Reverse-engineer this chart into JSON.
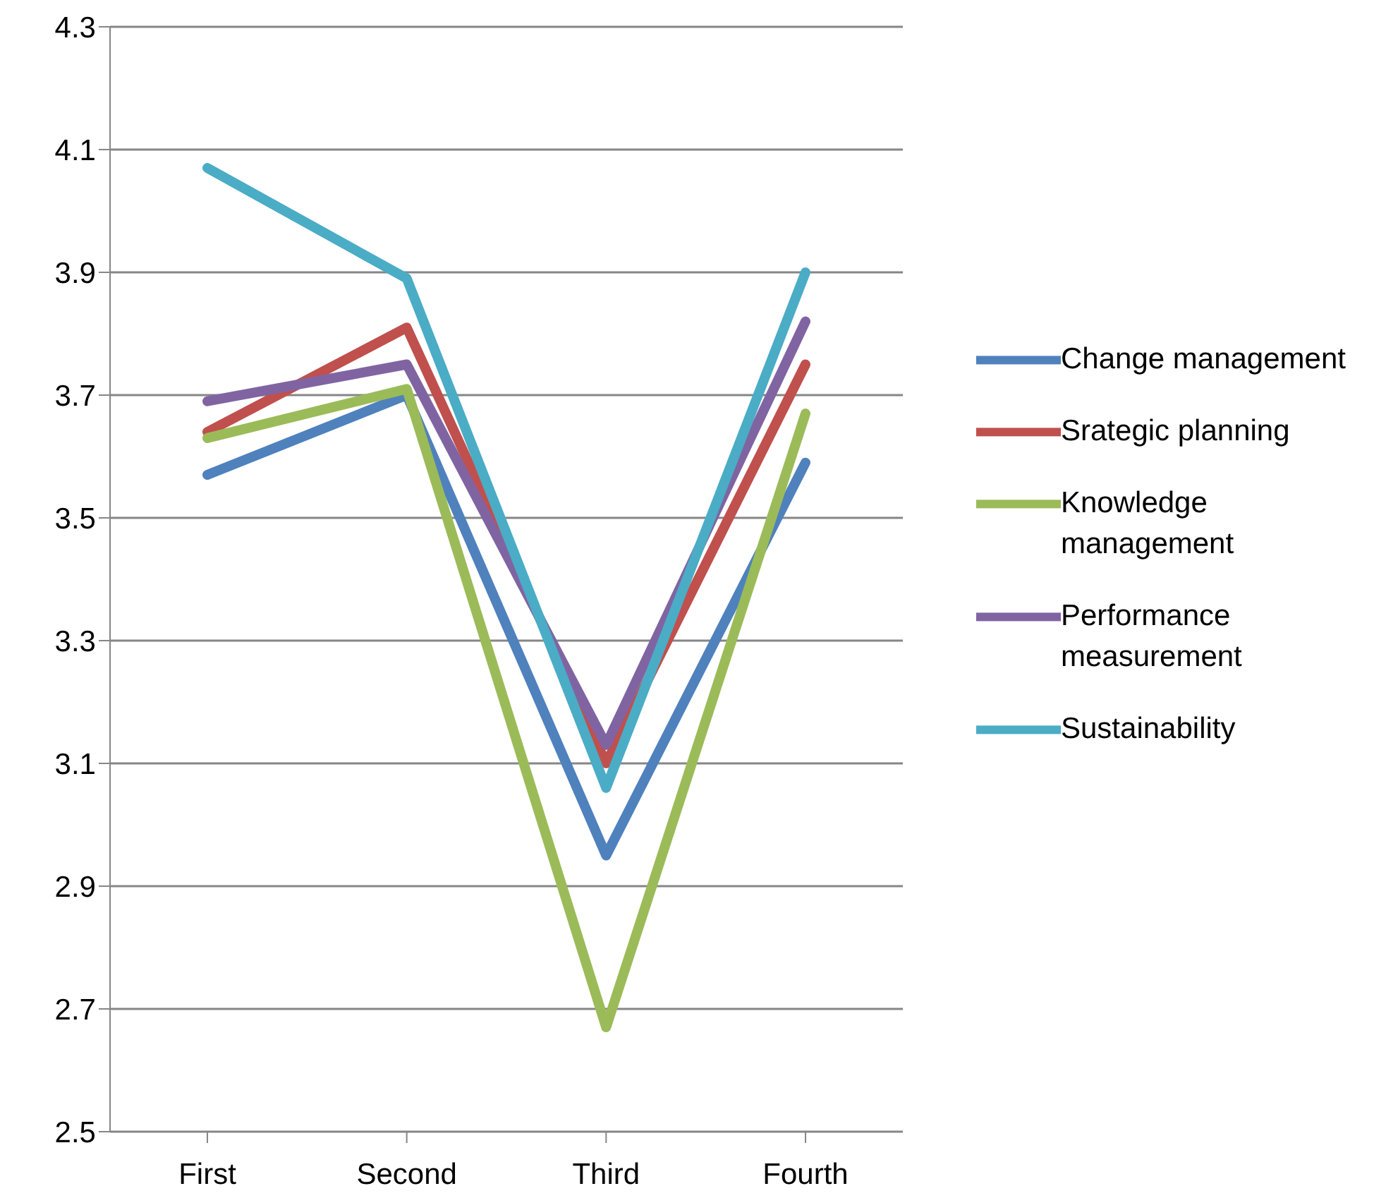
{
  "chart_data": {
    "type": "line",
    "categories": [
      "First",
      "Second",
      "Third",
      "Fourth"
    ],
    "series": [
      {
        "name": "Change management",
        "color": "#4f81bd",
        "values": [
          3.57,
          3.7,
          2.95,
          3.59
        ]
      },
      {
        "name": "Srategic planning",
        "color": "#c0504d",
        "values": [
          3.64,
          3.81,
          3.1,
          3.75
        ]
      },
      {
        "name": "Knowledge management",
        "color": "#9bbb59",
        "values": [
          3.63,
          3.71,
          2.67,
          3.67
        ]
      },
      {
        "name": "Performance measurement",
        "color": "#8064a2",
        "values": [
          3.69,
          3.75,
          3.13,
          3.82
        ]
      },
      {
        "name": "Sustainability",
        "color": "#4bacc6",
        "values": [
          4.07,
          3.89,
          3.06,
          3.9
        ]
      }
    ],
    "ylim": [
      2.5,
      4.3
    ],
    "yticks": [
      2.5,
      2.7,
      2.9,
      3.1,
      3.3,
      3.5,
      3.7,
      3.9,
      4.1,
      4.3
    ],
    "grid": "y",
    "legend": "right",
    "marker": "none",
    "line_style": "solid"
  }
}
